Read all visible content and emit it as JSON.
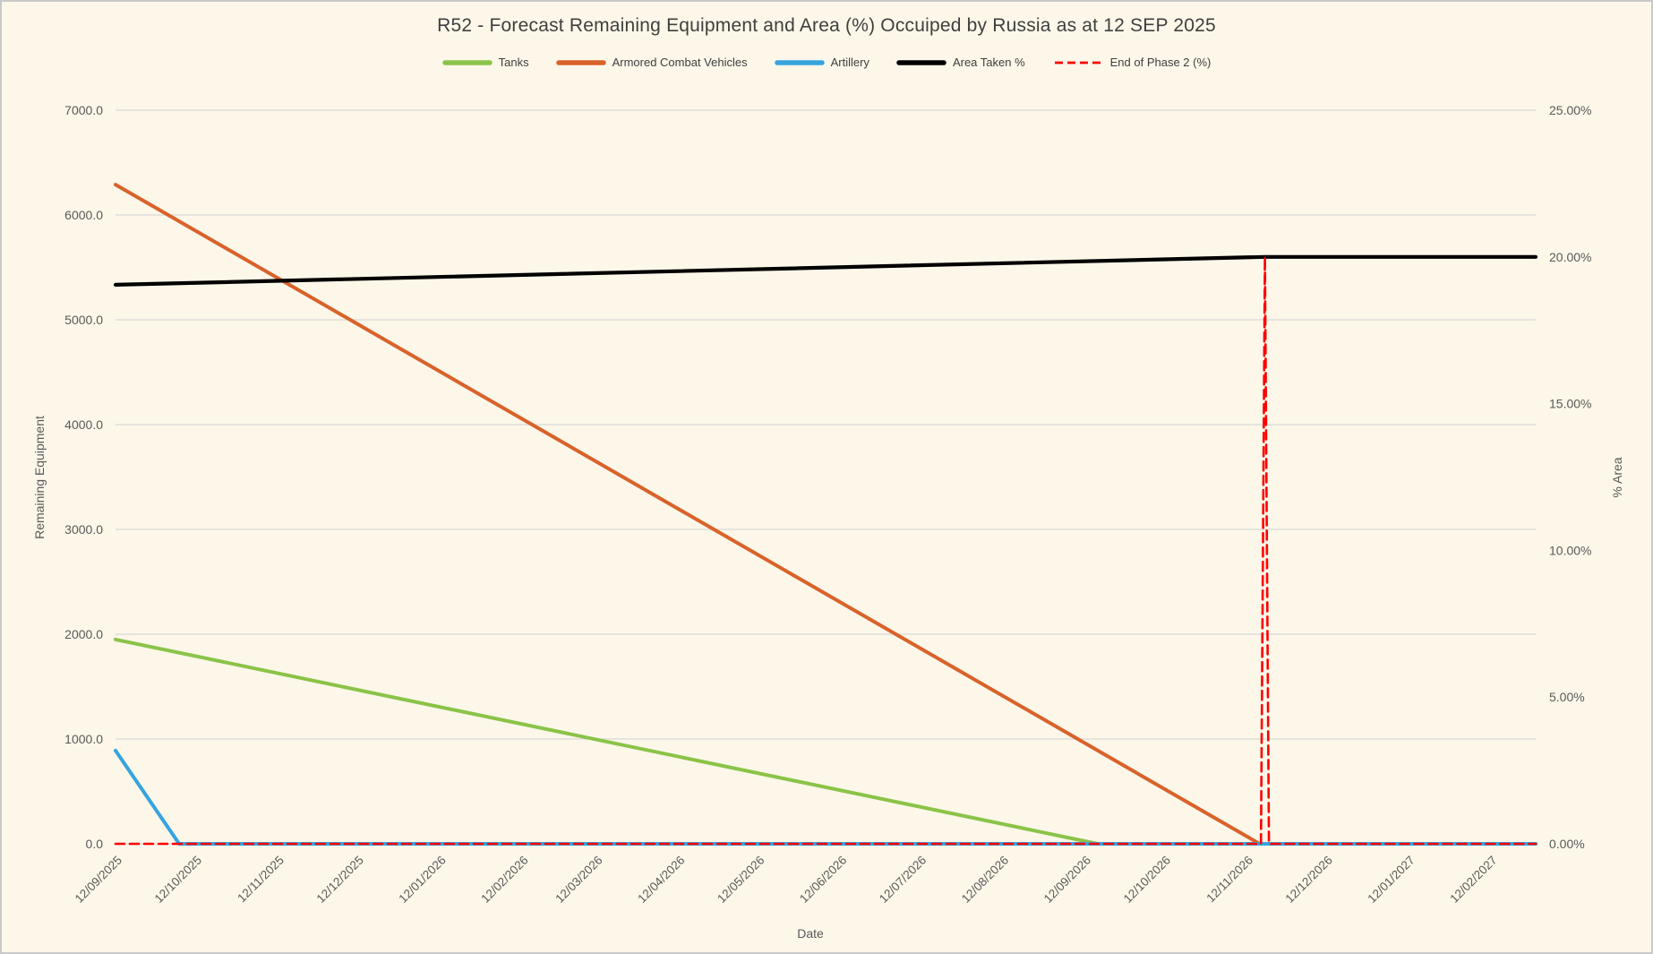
{
  "title": "R52 - Forecast Remaining Equipment and Area (%) Occuiped by Russia as at 12 SEP 2025",
  "axes": {
    "x_title": "Date",
    "y_left_title": "Remaining Equipment",
    "y_right_title": "% Area"
  },
  "colors": {
    "background": "#FCF7E9",
    "border": "#C9C9C9",
    "gridline": "#D8D8D8",
    "tick_text": "#595959",
    "title_text": "#3F3F3F",
    "tanks_green": "#8BC348",
    "acv_orange": "#D9622B",
    "artillery_blue": "#35A4DF",
    "area_black": "#000000",
    "phase2_red": "#FF0000"
  },
  "legend": [
    {
      "label": "Tanks",
      "slug": "tanks",
      "color": "#8BC348",
      "style": "solid"
    },
    {
      "label": "Armored Combat Vehicles",
      "slug": "acv",
      "color": "#D9622B",
      "style": "solid"
    },
    {
      "label": "Artillery",
      "slug": "artillery",
      "color": "#35A4DF",
      "style": "solid"
    },
    {
      "label": "Area Taken %",
      "slug": "area-taken",
      "color": "#000000",
      "style": "solid"
    },
    {
      "label": "End of Phase 2 (%)",
      "slug": "end-of-phase-2",
      "color": "#FF0000",
      "style": "dashed"
    }
  ],
  "chart_data": {
    "type": "line",
    "title": "R52 - Forecast Remaining Equipment and Area (%) Occuiped by Russia as at 12 SEP 2025",
    "xlabel": "Date",
    "ylabel_left": "Remaining Equipment",
    "ylabel_right": "% Area",
    "grid": "horizontal only",
    "legend_position": "top center",
    "x_unit": "days since 12/09/2025 (daily data, monthly tick labels, dates in DD/MM/YYYY)",
    "x_domain": [
      0,
      535
    ],
    "x_ticks": [
      {
        "d": 0,
        "label": "12/09/2025"
      },
      {
        "d": 30,
        "label": "12/10/2025"
      },
      {
        "d": 61,
        "label": "12/11/2025"
      },
      {
        "d": 91,
        "label": "12/12/2025"
      },
      {
        "d": 122,
        "label": "12/01/2026"
      },
      {
        "d": 153,
        "label": "12/02/2026"
      },
      {
        "d": 181,
        "label": "12/03/2026"
      },
      {
        "d": 212,
        "label": "12/04/2026"
      },
      {
        "d": 242,
        "label": "12/05/2026"
      },
      {
        "d": 273,
        "label": "12/06/2026"
      },
      {
        "d": 303,
        "label": "12/07/2026"
      },
      {
        "d": 334,
        "label": "12/08/2026"
      },
      {
        "d": 365,
        "label": "12/09/2026"
      },
      {
        "d": 395,
        "label": "12/10/2026"
      },
      {
        "d": 426,
        "label": "12/11/2026"
      },
      {
        "d": 456,
        "label": "12/12/2026"
      },
      {
        "d": 487,
        "label": "12/01/2027"
      },
      {
        "d": 518,
        "label": "12/02/2027"
      }
    ],
    "y_left": {
      "min": 0,
      "max": 7000,
      "tick_values": [
        0,
        1000,
        2000,
        3000,
        4000,
        5000,
        6000,
        7000
      ],
      "tick_labels": [
        "0.0",
        "1000.0",
        "2000.0",
        "3000.0",
        "4000.0",
        "5000.0",
        "6000.0",
        "7000.0"
      ]
    },
    "y_right": {
      "min": 0,
      "max": 25,
      "tick_values": [
        0,
        5,
        10,
        15,
        20,
        25
      ],
      "tick_labels": [
        "0.00%",
        "5.00%",
        "10.00%",
        "15.00%",
        "20.00%",
        "25.00%"
      ]
    },
    "series": [
      {
        "name": "Tanks",
        "slug": "tanks",
        "axis": "left",
        "color": "#8BC348",
        "width": 4,
        "dash": null,
        "points": [
          [
            0,
            1950
          ],
          [
            370,
            0
          ],
          [
            535,
            0
          ]
        ],
        "note": "~1950 on 12/09/2025, declines linearly to 0 around mid-Sep 2026, then flat at 0"
      },
      {
        "name": "Armored Combat Vehicles",
        "slug": "acv",
        "axis": "left",
        "color": "#D9622B",
        "width": 4,
        "dash": null,
        "points": [
          [
            0,
            6290
          ],
          [
            431,
            0
          ],
          [
            535,
            0
          ]
        ],
        "note": "~6290 on 12/09/2025, declines linearly to 0 around mid-Nov 2026, then flat at 0"
      },
      {
        "name": "Artillery",
        "slug": "artillery",
        "axis": "left",
        "color": "#35A4DF",
        "width": 4,
        "dash": null,
        "points": [
          [
            0,
            890
          ],
          [
            24,
            0
          ],
          [
            535,
            0
          ]
        ],
        "note": "~890 on 12/09/2025, falls steeply to 0 in early Oct 2025, then flat at 0"
      },
      {
        "name": "Area Taken %",
        "slug": "area-taken",
        "axis": "right",
        "color": "#000000",
        "width": 4.2,
        "dash": null,
        "points": [
          [
            0,
            19.05
          ],
          [
            433,
            20.0
          ],
          [
            535,
            20.0
          ]
        ],
        "note": "~19.05% on 12/09/2025, rises slowly to 20.00% by mid-Nov 2026, then flat at 20.00%"
      },
      {
        "name": "End of Phase 2 (%)",
        "slug": "end-of-phase-2",
        "axis": "right",
        "color": "#FF0000",
        "width": 2.6,
        "dash": "10 6",
        "points": [
          [
            0,
            0
          ],
          [
            431.5,
            0
          ],
          [
            433,
            20
          ],
          [
            434.5,
            0
          ],
          [
            535,
            0
          ]
        ],
        "note": "red dashed marker: 0% baseline across chart with a vertical spike to 20% at end of Phase 2 (~mid-Nov 2026)"
      }
    ]
  }
}
